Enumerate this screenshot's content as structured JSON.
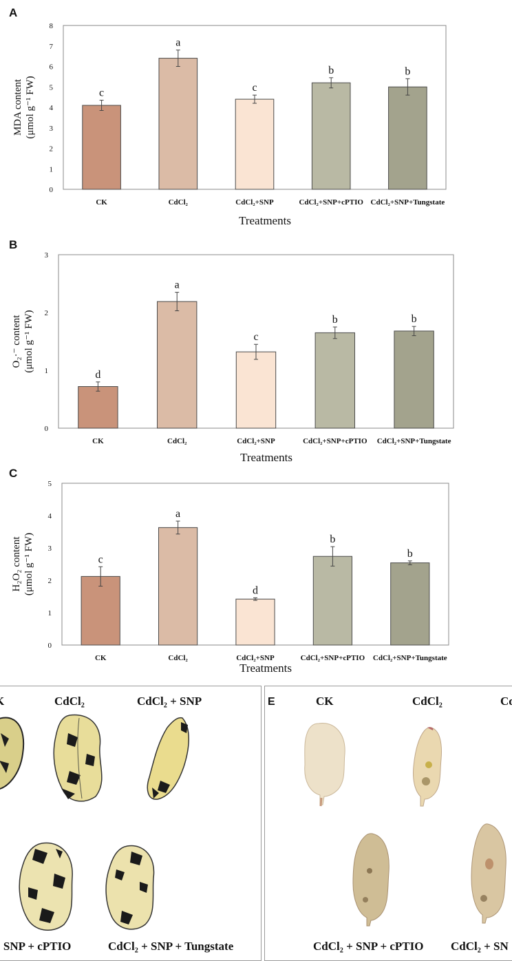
{
  "panels": {
    "a": "A",
    "b": "B",
    "c": "C",
    "e": "E"
  },
  "chart_data": [
    {
      "type": "bar",
      "categories": [
        "CK",
        "CdCl₂",
        "CdCl₂+SNP",
        "CdCl₂+SNP+cPTIO",
        "CdCl₂+SNP+Tungstate"
      ],
      "values": [
        4.1,
        6.4,
        4.4,
        5.2,
        5.0
      ],
      "errors": [
        0.25,
        0.4,
        0.2,
        0.25,
        0.4
      ],
      "significance": [
        "c",
        "a",
        "c",
        "b",
        "b"
      ],
      "xlabel": "Treatments",
      "ylabel_line1": "MDA content",
      "ylabel_line2": "(μmol g⁻¹ FW)",
      "ylim": [
        0,
        8
      ],
      "yticks": [
        "0",
        "1",
        "2",
        "3",
        "4",
        "5",
        "6",
        "7",
        "8"
      ],
      "colors": [
        "#c9937a",
        "#dbbba6",
        "#fae4d3",
        "#b9b9a4",
        "#a3a38d"
      ]
    },
    {
      "type": "bar",
      "categories": [
        "CK",
        "CdCl₂",
        "CdCl₂+SNP",
        "CdCl₂+SNP+cPTIO",
        "CdCl₂+SNP+Tungstate"
      ],
      "values": [
        0.72,
        2.19,
        1.32,
        1.65,
        1.68
      ],
      "errors": [
        0.08,
        0.16,
        0.13,
        0.1,
        0.08
      ],
      "significance": [
        "d",
        "a",
        "c",
        "b",
        "b"
      ],
      "xlabel": "Treatments",
      "ylabel_line1": "O₂·⁻ content",
      "ylabel_line2": "(μmol g⁻¹ FW)",
      "ylim": [
        0,
        3
      ],
      "yticks": [
        "0",
        "1",
        "2",
        "3"
      ],
      "colors": [
        "#c9937a",
        "#dbbba6",
        "#fae4d3",
        "#b9b9a4",
        "#a3a38d"
      ]
    },
    {
      "type": "bar",
      "categories": [
        "CK",
        "CdCl₂",
        "CdCl₂+SNP",
        "CdCl₂+SNP+cPTIO",
        "CdCl₂+SNP+Tungstate"
      ],
      "values": [
        2.12,
        3.63,
        1.42,
        2.74,
        2.54
      ],
      "errors": [
        0.3,
        0.2,
        0.04,
        0.3,
        0.06
      ],
      "significance": [
        "c",
        "a",
        "d",
        "b",
        "b"
      ],
      "xlabel": "Treatments",
      "ylabel_line1": "H₂O₂ content",
      "ylabel_line2": "(μmol g⁻¹ FW)",
      "ylim": [
        0,
        5
      ],
      "yticks": [
        "0",
        "1",
        "2",
        "3",
        "4",
        "5"
      ],
      "colors": [
        "#c9937a",
        "#dbbba6",
        "#fae4d3",
        "#b9b9a4",
        "#a3a38d"
      ]
    }
  ],
  "photos_d": {
    "labels": [
      "K",
      "CdCl₂",
      "CdCl₂ + SNP",
      "+ SNP + cPTIO",
      "CdCl₂ + SNP + Tungstate"
    ]
  },
  "photos_e": {
    "labels": [
      "CK",
      "CdCl₂",
      "Cd",
      "CdCl₂ + SNP + cPTIO",
      "CdCl₂ + SN"
    ]
  }
}
